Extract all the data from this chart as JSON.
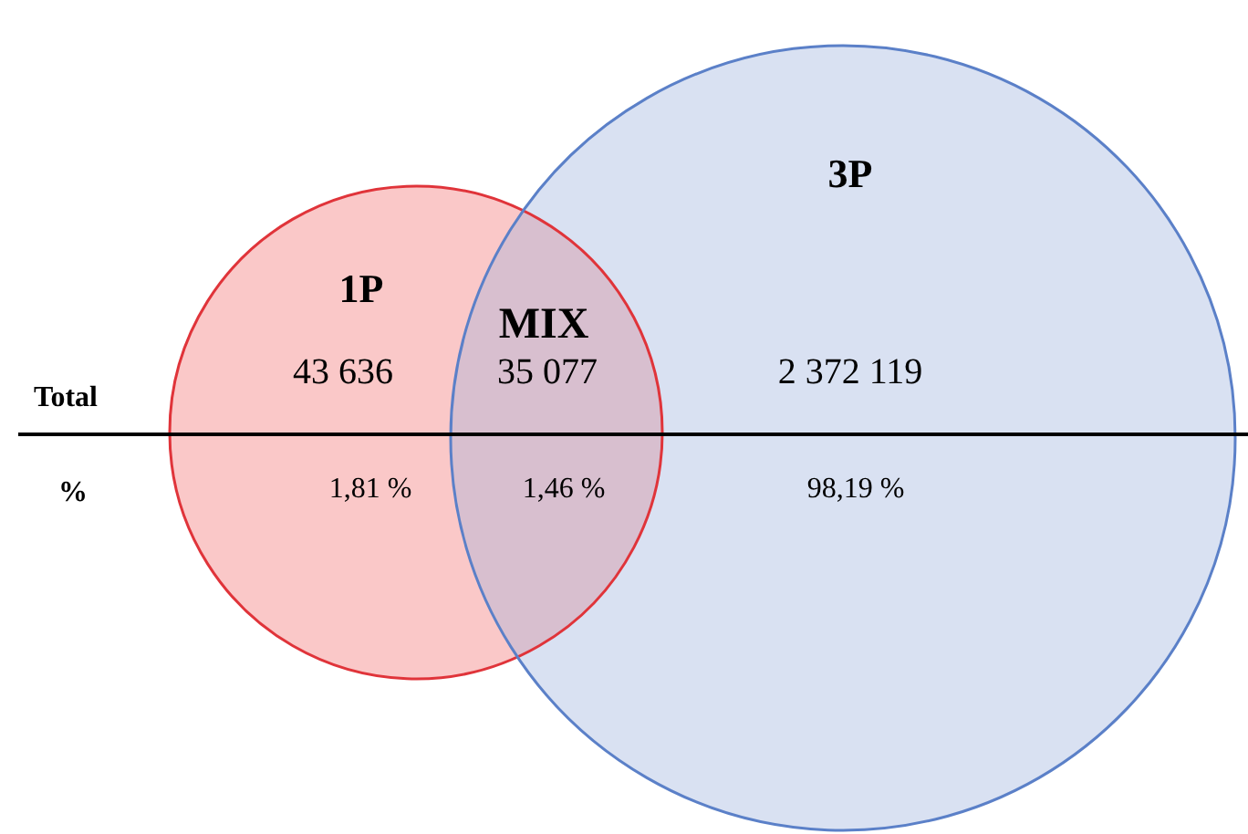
{
  "chart_data": {
    "type": "other",
    "categories": [
      "1P",
      "MIX",
      "3P"
    ],
    "colors": [
      "#fac8c8",
      "#d8bfcf",
      "#d9e1f2"
    ],
    "values": [
      43636,
      35077,
      2372119
    ],
    "data_labels": true,
    "annotations": [
      "Total",
      "%",
      "1,81 %",
      "1,46 %",
      "98,19 %"
    ]
  }
}
